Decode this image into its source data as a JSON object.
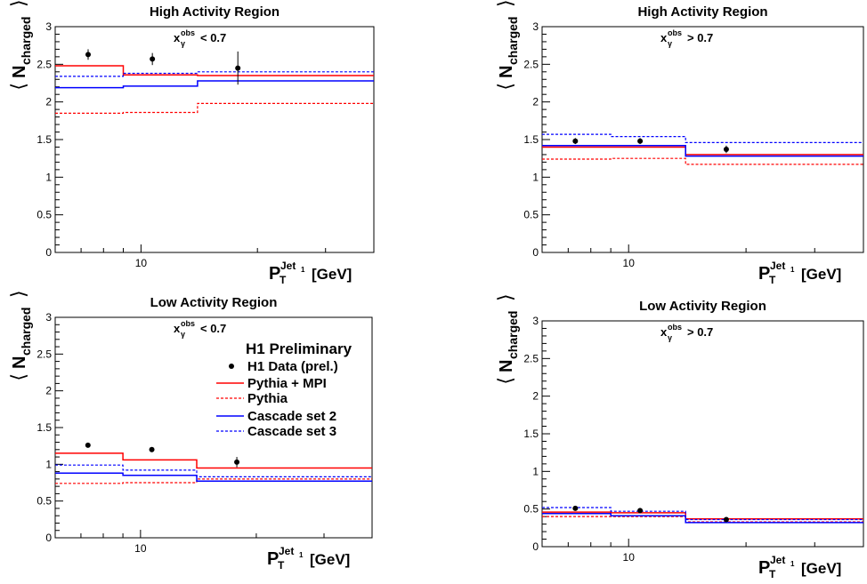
{
  "chart_data": [
    {
      "type": "step",
      "title": "High Activity Region",
      "cut_label": {
        "main": "x",
        "sup": "obs",
        "sub": "γ",
        "rel": "< 0.7"
      },
      "ylabel": {
        "main": "N",
        "sub": "charged"
      },
      "xlabel": {
        "main": "P",
        "sup": "Jet",
        "supsub": "1",
        "sub": "T",
        "unit": "[GeV]"
      },
      "xscale": "log",
      "xlim": [
        6,
        40
      ],
      "ylim": [
        0,
        3
      ],
      "yticks": [
        "0",
        "0.5",
        "1",
        "1.5",
        "2",
        "2.5",
        "3"
      ],
      "xticks": [
        "10"
      ],
      "bin_edges": [
        6,
        9,
        14,
        40
      ],
      "series": [
        {
          "name": "Pythia + MPI",
          "color": "#ff0000",
          "dashed": false,
          "values": [
            2.48,
            2.36,
            2.35
          ]
        },
        {
          "name": "Pythia",
          "color": "#ff0000",
          "dashed": true,
          "values": [
            1.85,
            1.86,
            1.98
          ]
        },
        {
          "name": "Cascade set 2",
          "color": "#0000ff",
          "dashed": false,
          "values": [
            2.19,
            2.21,
            2.28
          ]
        },
        {
          "name": "Cascade set 3",
          "color": "#0000ff",
          "dashed": true,
          "values": [
            2.34,
            2.38,
            2.4
          ]
        }
      ],
      "data_points": {
        "name": "H1 Data (prel.)",
        "x": [
          7.3,
          10.7,
          17.8
        ],
        "y": [
          2.63,
          2.57,
          2.45
        ],
        "err": [
          0.07,
          0.08,
          0.22
        ]
      }
    },
    {
      "type": "step",
      "title": "High Activity Region",
      "cut_label": {
        "main": "x",
        "sup": "obs",
        "sub": "γ",
        "rel": "> 0.7"
      },
      "ylabel": {
        "main": "N",
        "sub": "charged"
      },
      "xlabel": {
        "main": "P",
        "sup": "Jet",
        "supsub": "1",
        "sub": "T",
        "unit": "[GeV]"
      },
      "xscale": "log",
      "xlim": [
        6,
        40
      ],
      "ylim": [
        0,
        3
      ],
      "yticks": [
        "0",
        "0.5",
        "1",
        "1.5",
        "2",
        "2.5",
        "3"
      ],
      "xticks": [
        "10"
      ],
      "bin_edges": [
        6,
        9,
        14,
        40
      ],
      "series": [
        {
          "name": "Pythia + MPI",
          "color": "#ff0000",
          "dashed": false,
          "values": [
            1.4,
            1.4,
            1.3
          ]
        },
        {
          "name": "Pythia",
          "color": "#ff0000",
          "dashed": true,
          "values": [
            1.24,
            1.25,
            1.17
          ]
        },
        {
          "name": "Cascade set 2",
          "color": "#0000ff",
          "dashed": false,
          "values": [
            1.42,
            1.42,
            1.28
          ]
        },
        {
          "name": "Cascade set 3",
          "color": "#0000ff",
          "dashed": true,
          "values": [
            1.57,
            1.54,
            1.46
          ]
        }
      ],
      "data_points": {
        "name": "H1 Data (prel.)",
        "x": [
          7.3,
          10.7,
          17.8
        ],
        "y": [
          1.48,
          1.48,
          1.37
        ],
        "err": [
          0.04,
          0.04,
          0.05
        ]
      }
    },
    {
      "type": "step",
      "title": "Low Activity Region",
      "cut_label": {
        "main": "x",
        "sup": "obs",
        "sub": "γ",
        "rel": "< 0.7"
      },
      "ylabel": {
        "main": "N",
        "sub": "charged"
      },
      "xlabel": {
        "main": "P",
        "sup": "Jet",
        "supsub": "1",
        "sub": "T",
        "unit": "[GeV]"
      },
      "xscale": "log",
      "xlim": [
        6,
        40
      ],
      "ylim": [
        0,
        3
      ],
      "yticks": [
        "0",
        "0.5",
        "1",
        "1.5",
        "2",
        "2.5",
        "3"
      ],
      "xticks": [
        "10"
      ],
      "bin_edges": [
        6,
        9,
        14,
        40
      ],
      "series": [
        {
          "name": "Pythia + MPI",
          "color": "#ff0000",
          "dashed": false,
          "values": [
            1.15,
            1.06,
            0.95
          ]
        },
        {
          "name": "Pythia",
          "color": "#ff0000",
          "dashed": true,
          "values": [
            0.74,
            0.75,
            0.8
          ]
        },
        {
          "name": "Cascade set 2",
          "color": "#0000ff",
          "dashed": false,
          "values": [
            0.88,
            0.85,
            0.77
          ]
        },
        {
          "name": "Cascade set 3",
          "color": "#0000ff",
          "dashed": true,
          "values": [
            0.99,
            0.92,
            0.83
          ]
        }
      ],
      "data_points": {
        "name": "H1 Data (prel.)",
        "x": [
          7.3,
          10.7,
          17.8
        ],
        "y": [
          1.26,
          1.2,
          1.03
        ],
        "err": [
          0.03,
          0.03,
          0.07
        ]
      },
      "legend": {
        "title": "H1 Preliminary",
        "entries": [
          "H1 Data (prel.)",
          "Pythia + MPI",
          "Pythia",
          "Cascade set 2",
          "Cascade set 3"
        ]
      }
    },
    {
      "type": "step",
      "title": "Low Activity Region",
      "cut_label": {
        "main": "x",
        "sup": "obs",
        "sub": "γ",
        "rel": "> 0.7"
      },
      "ylabel": {
        "main": "N",
        "sub": "charged"
      },
      "xlabel": {
        "main": "P",
        "sup": "Jet",
        "supsub": "1",
        "sub": "T",
        "unit": "[GeV]"
      },
      "xscale": "log",
      "xlim": [
        6,
        40
      ],
      "ylim": [
        0,
        3
      ],
      "yticks": [
        "0",
        "0.5",
        "1",
        "1.5",
        "2",
        "2.5",
        "3"
      ],
      "xticks": [
        "10"
      ],
      "bin_edges": [
        6,
        9,
        14,
        40
      ],
      "series": [
        {
          "name": "Pythia + MPI",
          "color": "#ff0000",
          "dashed": false,
          "values": [
            0.46,
            0.45,
            0.37
          ]
        },
        {
          "name": "Pythia",
          "color": "#ff0000",
          "dashed": true,
          "values": [
            0.4,
            0.4,
            0.33
          ]
        },
        {
          "name": "Cascade set 2",
          "color": "#0000ff",
          "dashed": false,
          "values": [
            0.44,
            0.41,
            0.32
          ]
        },
        {
          "name": "Cascade set 3",
          "color": "#0000ff",
          "dashed": true,
          "values": [
            0.52,
            0.47,
            0.36
          ]
        }
      ],
      "data_points": {
        "name": "H1 Data (prel.)",
        "x": [
          7.3,
          10.7,
          17.8
        ],
        "y": [
          0.51,
          0.48,
          0.36
        ],
        "err": [
          0.02,
          0.02,
          0.03
        ]
      }
    }
  ]
}
